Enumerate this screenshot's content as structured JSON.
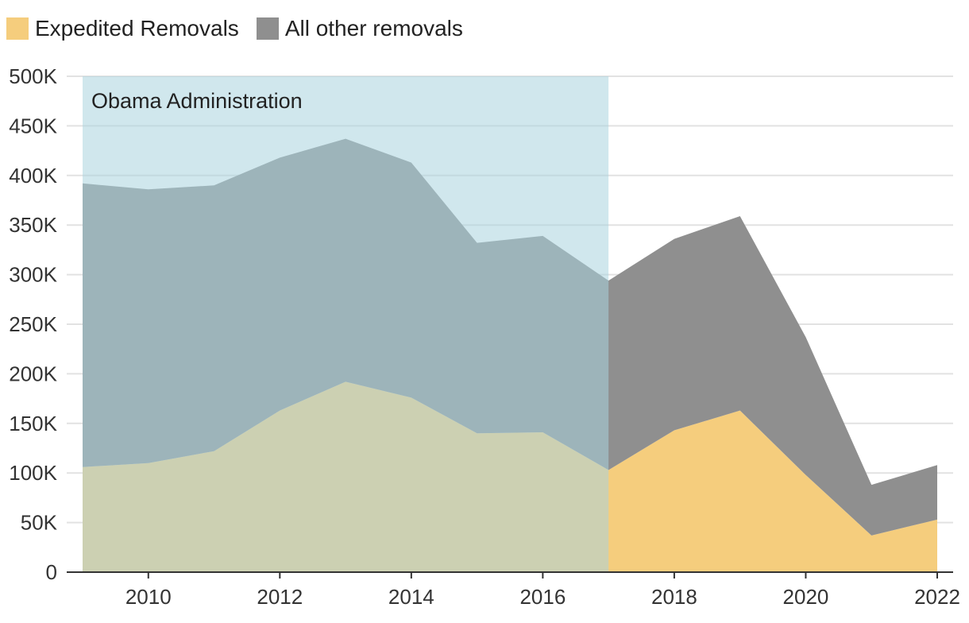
{
  "chart_data": {
    "type": "area",
    "stacked": true,
    "x": [
      2009,
      2010,
      2011,
      2012,
      2013,
      2014,
      2015,
      2016,
      2017,
      2018,
      2019,
      2020,
      2021,
      2022
    ],
    "series": [
      {
        "name": "Expedited Removals",
        "color": "#f5cd7d",
        "values": [
          106000,
          110000,
          122000,
          163000,
          192000,
          176000,
          140000,
          141000,
          103000,
          143000,
          163000,
          98000,
          37000,
          53000
        ]
      },
      {
        "name": "All other removals",
        "color": "#8f8f8f",
        "values": [
          286000,
          276000,
          268000,
          255000,
          245000,
          237000,
          192000,
          198000,
          191000,
          193000,
          196000,
          139000,
          51000,
          55000
        ]
      }
    ],
    "ylim": [
      0,
      500000
    ],
    "y_ticks": [
      0,
      50000,
      100000,
      150000,
      200000,
      250000,
      300000,
      350000,
      400000,
      450000,
      500000
    ],
    "y_tick_labels": [
      "0",
      "50K",
      "100K",
      "150K",
      "200K",
      "250K",
      "300K",
      "350K",
      "400K",
      "450K",
      "500K"
    ],
    "x_ticks": [
      2010,
      2012,
      2014,
      2016,
      2018,
      2020,
      2022
    ],
    "x_tick_labels": [
      "2010",
      "2012",
      "2014",
      "2016",
      "2018",
      "2020",
      "2022"
    ],
    "grid": true,
    "legend_position": "top-left",
    "highlight_band": {
      "label": "Obama Administration",
      "x_start": 2009,
      "x_end": 2017,
      "color": "#a9d3df"
    }
  }
}
